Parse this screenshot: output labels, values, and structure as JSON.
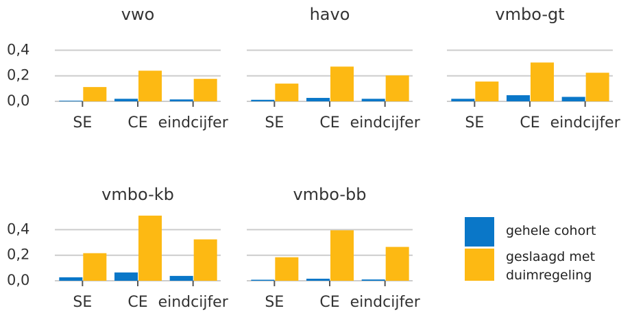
{
  "legend": {
    "series": [
      {
        "name": "gehele cohort",
        "color": "#0a77c8"
      },
      {
        "name": "geslaagd met duimregeling",
        "color": "#fdb913"
      }
    ]
  },
  "ylim": [
    0,
    0.52
  ],
  "yticks": [
    {
      "value": 0,
      "label": "0,0"
    },
    {
      "value": 0.2,
      "label": "0,2"
    },
    {
      "value": 0.4,
      "label": "0,4"
    }
  ],
  "chart_data": [
    {
      "type": "bar",
      "title": "vwo",
      "categories": [
        "SE",
        "CE",
        "eindcijfer"
      ],
      "series": [
        {
          "values": [
            0.005,
            0.02,
            0.015
          ]
        },
        {
          "values": [
            0.112,
            0.24,
            0.176
          ]
        }
      ]
    },
    {
      "type": "bar",
      "title": "havo",
      "categories": [
        "SE",
        "CE",
        "eindcijfer"
      ],
      "series": [
        {
          "values": [
            0.012,
            0.027,
            0.02
          ]
        },
        {
          "values": [
            0.139,
            0.272,
            0.203
          ]
        }
      ]
    },
    {
      "type": "bar",
      "title": "vmbo-gt",
      "categories": [
        "SE",
        "CE",
        "eindcijfer"
      ],
      "series": [
        {
          "values": [
            0.02,
            0.048,
            0.035
          ]
        },
        {
          "values": [
            0.155,
            0.304,
            0.224
          ]
        }
      ]
    },
    {
      "type": "bar",
      "title": "vmbo-kb",
      "categories": [
        "SE",
        "CE",
        "eindcijfer"
      ],
      "series": [
        {
          "values": [
            0.027,
            0.065,
            0.038
          ]
        },
        {
          "values": [
            0.216,
            0.51,
            0.324
          ]
        }
      ]
    },
    {
      "type": "bar",
      "title": "vmbo-bb",
      "categories": [
        "SE",
        "CE",
        "eindcijfer"
      ],
      "series": [
        {
          "values": [
            0.008,
            0.016,
            0.01
          ]
        },
        {
          "values": [
            0.184,
            0.395,
            0.265
          ]
        }
      ]
    }
  ]
}
